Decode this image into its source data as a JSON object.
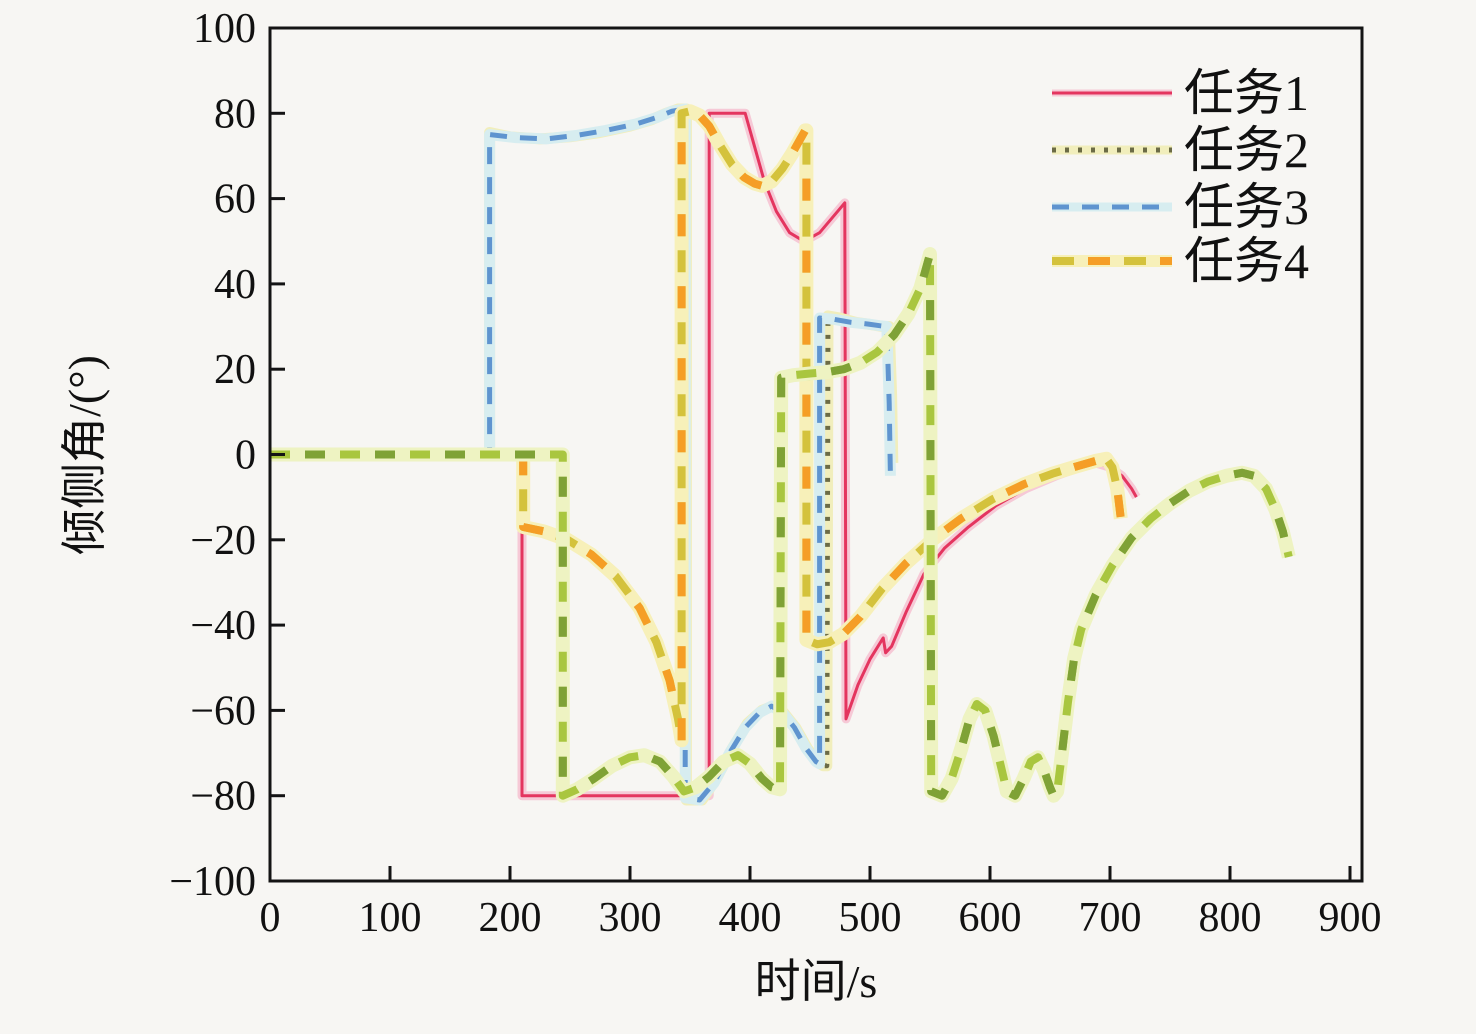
{
  "figure": {
    "background": "#f7f6f3",
    "frame_color": "#141414"
  },
  "axes": {
    "x": {
      "label": "时间/s",
      "min": 0,
      "max": 910,
      "ticks": [
        {
          "v": 0,
          "t": "0"
        },
        {
          "v": 100,
          "t": "100"
        },
        {
          "v": 200,
          "t": "200"
        },
        {
          "v": 300,
          "t": "300"
        },
        {
          "v": 400,
          "t": "400"
        },
        {
          "v": 500,
          "t": "500"
        },
        {
          "v": 600,
          "t": "600"
        },
        {
          "v": 700,
          "t": "700"
        },
        {
          "v": 800,
          "t": "800"
        },
        {
          "v": 900,
          "t": "900"
        }
      ]
    },
    "y": {
      "label": "倾侧角/(°)",
      "min": -100,
      "max": 100,
      "ticks": [
        {
          "v": 100,
          "t": "100"
        },
        {
          "v": 80,
          "t": "80"
        },
        {
          "v": 60,
          "t": "60"
        },
        {
          "v": 40,
          "t": "40"
        },
        {
          "v": 20,
          "t": "20"
        },
        {
          "v": 0,
          "t": "0"
        },
        {
          "v": -20,
          "t": "−20"
        },
        {
          "v": -40,
          "t": "−40"
        },
        {
          "v": -60,
          "t": "−60"
        },
        {
          "v": -80,
          "t": "−80"
        },
        {
          "v": -100,
          "t": "−100"
        }
      ]
    }
  },
  "legend": {
    "position": "upper-right",
    "items": [
      {
        "label": "任务1",
        "series": 0
      },
      {
        "label": "任务2",
        "series": 1
      },
      {
        "label": "任务3",
        "series": 2
      },
      {
        "label": "任务4",
        "series": 3
      }
    ]
  },
  "chart_data": {
    "type": "line",
    "title": "",
    "xlabel": "时间/s",
    "ylabel": "倾侧角/(°)",
    "xlim": [
      0,
      910
    ],
    "ylim": [
      -100,
      100
    ],
    "grid": false,
    "legend_position": "upper right",
    "series": [
      {
        "name": "任务1",
        "legend_label": "任务1",
        "style": "solid",
        "color": "#e4355f",
        "color2": null,
        "halo": "#f6c9d6",
        "width": 3,
        "points": [
          [
            0,
            0
          ],
          [
            210,
            0
          ],
          [
            210,
            -80
          ],
          [
            366,
            -80
          ],
          [
            366,
            80
          ],
          [
            396,
            80
          ],
          [
            403,
            73
          ],
          [
            412,
            64
          ],
          [
            422,
            57
          ],
          [
            433,
            52
          ],
          [
            445,
            50
          ],
          [
            458,
            52
          ],
          [
            470,
            56
          ],
          [
            479,
            59
          ],
          [
            480,
            -62
          ],
          [
            490,
            -54
          ],
          [
            500,
            -48
          ],
          [
            511,
            -43
          ],
          [
            513,
            -46.5
          ],
          [
            518,
            -45
          ],
          [
            530,
            -37
          ],
          [
            545,
            -28
          ],
          [
            562,
            -22
          ],
          [
            582,
            -17
          ],
          [
            605,
            -12
          ],
          [
            630,
            -8
          ],
          [
            655,
            -5
          ],
          [
            675,
            -3
          ],
          [
            688,
            -2
          ],
          [
            700,
            -3
          ],
          [
            710,
            -5
          ],
          [
            718,
            -8
          ],
          [
            722,
            -10
          ]
        ]
      },
      {
        "name": "任务2",
        "legend_label": "任务2",
        "style": "dotted",
        "color": "#6b6b45",
        "color2": null,
        "halo": "#f1eebc",
        "width": 5,
        "points": [
          [
            0,
            0
          ],
          [
            183,
            0
          ],
          [
            183,
            75.5
          ],
          [
            200,
            74.5
          ],
          [
            225,
            74
          ],
          [
            250,
            74.5
          ],
          [
            275,
            75.5
          ],
          [
            300,
            77
          ],
          [
            318,
            78.5
          ],
          [
            330,
            80
          ],
          [
            340,
            81
          ],
          [
            347,
            81
          ],
          [
            347,
            -81
          ],
          [
            360,
            -81
          ],
          [
            372,
            -76
          ],
          [
            385,
            -69
          ],
          [
            398,
            -63
          ],
          [
            410,
            -60
          ],
          [
            419,
            -59
          ],
          [
            428,
            -60.5
          ],
          [
            438,
            -64
          ],
          [
            448,
            -69
          ],
          [
            456,
            -72
          ],
          [
            461,
            -73
          ],
          [
            464,
            -73
          ],
          [
            465,
            32.5
          ],
          [
            475,
            32
          ],
          [
            488,
            31
          ],
          [
            500,
            30.5
          ],
          [
            510,
            30
          ],
          [
            516,
            30
          ],
          [
            518,
            14
          ],
          [
            519,
            -2
          ],
          [
            521,
            -2
          ]
        ]
      },
      {
        "name": "任务3",
        "legend_label": "任务3",
        "style": "dashed",
        "color": "#5f94cf",
        "color2": null,
        "halo": "#d7edf0",
        "width": 5,
        "points": [
          [
            0,
            0
          ],
          [
            183,
            0
          ],
          [
            183,
            75
          ],
          [
            205,
            74.3
          ],
          [
            230,
            74
          ],
          [
            255,
            74.8
          ],
          [
            280,
            76
          ],
          [
            305,
            77.5
          ],
          [
            322,
            79
          ],
          [
            335,
            80.5
          ],
          [
            346,
            81
          ],
          [
            346,
            -80.5
          ],
          [
            358,
            -81
          ],
          [
            370,
            -77
          ],
          [
            383,
            -70
          ],
          [
            396,
            -64
          ],
          [
            408,
            -60.5
          ],
          [
            418,
            -59
          ],
          [
            427,
            -60.5
          ],
          [
            437,
            -64
          ],
          [
            447,
            -69
          ],
          [
            455,
            -72
          ],
          [
            458,
            -72.5
          ],
          [
            458,
            32
          ],
          [
            470,
            31.7
          ],
          [
            484,
            31
          ],
          [
            498,
            30.6
          ],
          [
            508,
            30.2
          ],
          [
            514,
            30
          ],
          [
            516,
            12
          ],
          [
            517,
            -5
          ]
        ]
      },
      {
        "name": "任务4",
        "legend_label": "任务4",
        "style": "twotone-dash",
        "color": "#d4c23c",
        "color2": "#f59e26",
        "halo": "#f7f0b9",
        "width": 8,
        "points": [
          [
            0,
            0
          ],
          [
            211,
            0
          ],
          [
            211,
            -17
          ],
          [
            228,
            -18
          ],
          [
            248,
            -20
          ],
          [
            268,
            -23.5
          ],
          [
            288,
            -28.5
          ],
          [
            308,
            -36
          ],
          [
            322,
            -44
          ],
          [
            333,
            -53
          ],
          [
            340,
            -62
          ],
          [
            343,
            -67
          ],
          [
            343,
            80
          ],
          [
            350,
            80.5
          ],
          [
            358,
            79.5
          ],
          [
            366,
            77
          ],
          [
            375,
            72.5
          ],
          [
            385,
            68
          ],
          [
            395,
            65
          ],
          [
            404,
            63.5
          ],
          [
            410,
            63
          ],
          [
            418,
            64
          ],
          [
            427,
            67
          ],
          [
            435,
            70.5
          ],
          [
            442,
            74
          ],
          [
            446,
            76
          ],
          [
            447,
            76
          ],
          [
            447,
            -43.5
          ],
          [
            456,
            -44.5
          ],
          [
            466,
            -44
          ],
          [
            478,
            -42
          ],
          [
            492,
            -38
          ],
          [
            510,
            -31.5
          ],
          [
            530,
            -25.5
          ],
          [
            552,
            -20
          ],
          [
            576,
            -15
          ],
          [
            602,
            -10.5
          ],
          [
            628,
            -7
          ],
          [
            652,
            -4.5
          ],
          [
            672,
            -2.8
          ],
          [
            688,
            -1.5
          ],
          [
            697,
            -1
          ],
          [
            702,
            -3
          ],
          [
            706,
            -8
          ],
          [
            709,
            -15
          ]
        ]
      },
      {
        "name": "unlabeled-green-dashed",
        "legend_label": null,
        "style": "twotone-dash2",
        "color": "#a9c63f",
        "color2": "#7fa236",
        "halo": "#eef3c2",
        "width": 8,
        "points": [
          [
            0,
            0
          ],
          [
            244,
            0
          ],
          [
            244,
            -80
          ],
          [
            256,
            -78.5
          ],
          [
            270,
            -76
          ],
          [
            285,
            -73
          ],
          [
            300,
            -71
          ],
          [
            312,
            -70.5
          ],
          [
            325,
            -72
          ],
          [
            336,
            -75.5
          ],
          [
            345,
            -79
          ],
          [
            355,
            -78
          ],
          [
            366,
            -75.5
          ],
          [
            378,
            -72
          ],
          [
            390,
            -70.5
          ],
          [
            400,
            -72.5
          ],
          [
            410,
            -76
          ],
          [
            418,
            -78
          ],
          [
            425,
            -78.5
          ],
          [
            426,
            18
          ],
          [
            436,
            18.6
          ],
          [
            450,
            19
          ],
          [
            464,
            19.3
          ],
          [
            478,
            20
          ],
          [
            492,
            21.5
          ],
          [
            506,
            24
          ],
          [
            520,
            28
          ],
          [
            532,
            33
          ],
          [
            542,
            39
          ],
          [
            548,
            45
          ],
          [
            550,
            47
          ],
          [
            551,
            -79
          ],
          [
            560,
            -80
          ],
          [
            568,
            -76
          ],
          [
            576,
            -69
          ],
          [
            583,
            -62
          ],
          [
            589,
            -58.5
          ],
          [
            596,
            -60
          ],
          [
            603,
            -66
          ],
          [
            609,
            -73
          ],
          [
            614,
            -79
          ],
          [
            621,
            -80
          ],
          [
            628,
            -76
          ],
          [
            634,
            -72
          ],
          [
            640,
            -71
          ],
          [
            645,
            -74
          ],
          [
            650,
            -78
          ],
          [
            653,
            -80
          ],
          [
            656,
            -79
          ],
          [
            660,
            -70
          ],
          [
            665,
            -58
          ],
          [
            670,
            -48
          ],
          [
            676,
            -41
          ],
          [
            688,
            -33
          ],
          [
            702,
            -26
          ],
          [
            718,
            -19.5
          ],
          [
            734,
            -15
          ],
          [
            750,
            -11.5
          ],
          [
            766,
            -8.5
          ],
          [
            782,
            -6.3
          ],
          [
            797,
            -5
          ],
          [
            810,
            -4.3
          ],
          [
            820,
            -5
          ],
          [
            830,
            -8
          ],
          [
            838,
            -13
          ],
          [
            844,
            -18
          ],
          [
            849,
            -24
          ]
        ]
      }
    ]
  }
}
